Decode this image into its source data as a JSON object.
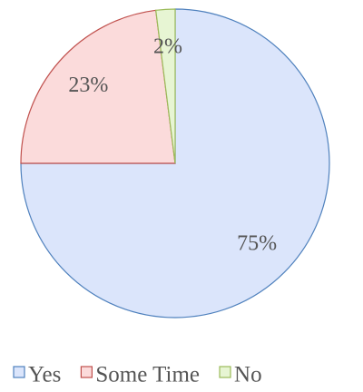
{
  "chart_data": {
    "type": "pie",
    "categories": [
      "Yes",
      "Some Time",
      "No"
    ],
    "values": [
      75,
      23,
      2
    ],
    "value_labels": [
      "75%",
      "23%",
      "2%"
    ],
    "colors": [
      "#dbe5fb",
      "#fbdbdb",
      "#e7f5d3"
    ],
    "stroke_colors": [
      "#4f81bd",
      "#c0504d",
      "#9bbb59"
    ],
    "legend": "bottom"
  }
}
